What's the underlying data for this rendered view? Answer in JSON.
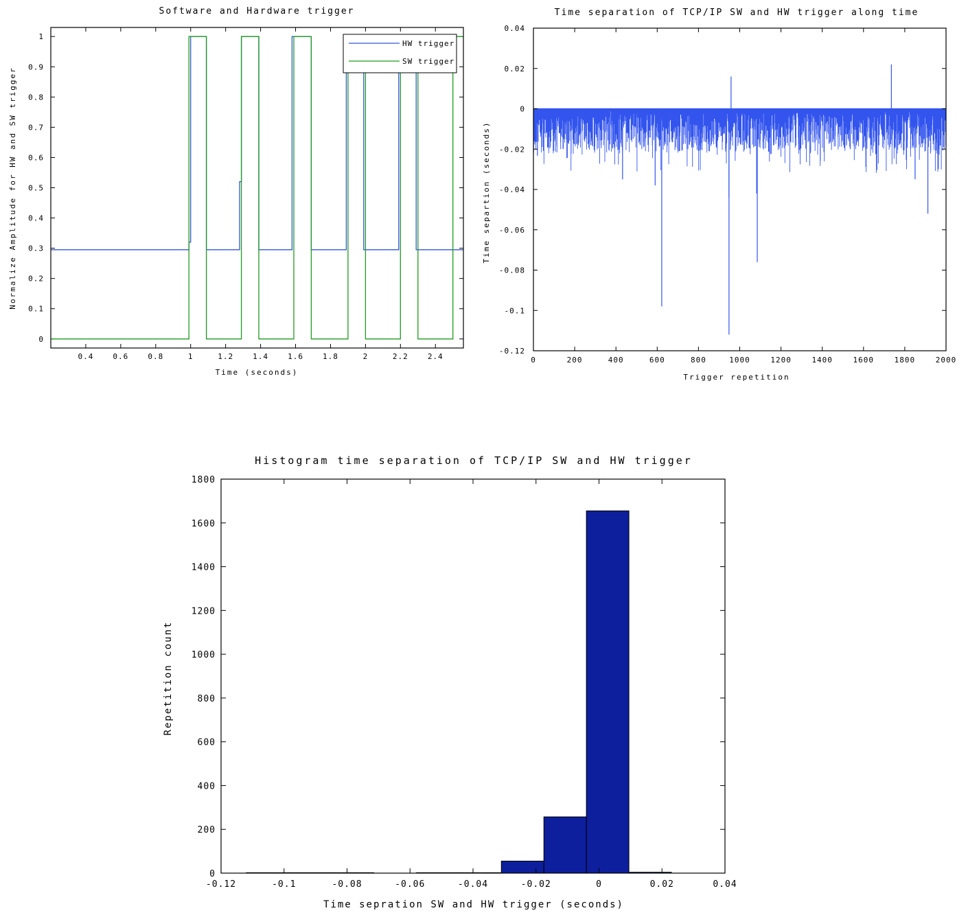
{
  "chart_data": [
    {
      "type": "line",
      "title": "Software and Hardware trigger",
      "xlabel": "Time (seconds)",
      "ylabel": "Normalize Amplitude for HW and SW trigger",
      "xlim": [
        0.2,
        2.56
      ],
      "ylim": [
        -0.03,
        1.03
      ],
      "xticks": [
        0.4,
        0.6,
        0.8,
        1,
        1.2,
        1.4,
        1.6,
        1.8,
        2,
        2.2,
        2.4
      ],
      "yticks": [
        0,
        0.1,
        0.2,
        0.3,
        0.4,
        0.5,
        0.6,
        0.7,
        0.8,
        0.9,
        1
      ],
      "grid": false,
      "legend_position": "top-right",
      "series": [
        {
          "name": "HW trigger",
          "color": "#3355dd",
          "x": [
            0.2,
            0.99,
            0.99,
            1.0,
            1.0,
            1.09,
            1.09,
            1.28,
            1.28,
            1.29,
            1.29,
            1.39,
            1.39,
            1.58,
            1.58,
            1.69,
            1.69,
            1.89,
            1.89,
            1.99,
            1.99,
            2.19,
            2.19,
            2.29,
            2.29,
            2.56
          ],
          "y": [
            0.295,
            0.295,
            0.32,
            0.32,
            1.0,
            1.0,
            0.295,
            0.295,
            0.52,
            0.52,
            1.0,
            1.0,
            0.295,
            0.295,
            1.0,
            1.0,
            0.295,
            0.295,
            1.0,
            1.0,
            0.295,
            0.295,
            1.0,
            1.0,
            0.295,
            0.295
          ]
        },
        {
          "name": "SW trigger",
          "color": "#1f9a1f",
          "x": [
            0.2,
            0.99,
            0.99,
            1.09,
            1.09,
            1.29,
            1.29,
            1.39,
            1.39,
            1.59,
            1.59,
            1.69,
            1.69,
            1.9,
            1.9,
            2.0,
            2.0,
            2.2,
            2.2,
            2.3,
            2.3,
            2.5,
            2.5,
            2.56
          ],
          "y": [
            0,
            0,
            1,
            1,
            0,
            0,
            1,
            1,
            0,
            0,
            1,
            1,
            0,
            0,
            1,
            1,
            0,
            0,
            1,
            1,
            0,
            0,
            1,
            1
          ]
        }
      ]
    },
    {
      "type": "bar",
      "title": "Time separation of TCP/IP SW and HW trigger along time",
      "xlabel": "Trigger repetition",
      "ylabel": "Time separtion (seconds)",
      "xlim": [
        0,
        2000
      ],
      "ylim": [
        -0.12,
        0.04
      ],
      "xticks": [
        0,
        200,
        400,
        600,
        800,
        1000,
        1200,
        1400,
        1600,
        1800,
        2000
      ],
      "yticks": [
        0.04,
        0.02,
        0,
        -0.02,
        -0.04,
        -0.06,
        -0.08,
        -0.1,
        -0.12
      ],
      "ytick_labels": [
        "0.04",
        "0.02",
        "0",
        "-0.02",
        "-0.04",
        "-0.06",
        "-0.08",
        "-0.1",
        "-0.12"
      ],
      "grid": false,
      "color": "#3355ee",
      "n_points": 2000,
      "typical_range": [
        -0.02,
        0
      ],
      "notable_points": [
        {
          "x": 622,
          "y": -0.098
        },
        {
          "x": 948,
          "y": -0.112
        },
        {
          "x": 958,
          "y": 0.016
        },
        {
          "x": 1085,
          "y": -0.076
        },
        {
          "x": 1082,
          "y": -0.042
        },
        {
          "x": 1735,
          "y": 0.022
        },
        {
          "x": 590,
          "y": -0.038
        },
        {
          "x": 1912,
          "y": -0.052
        },
        {
          "x": 432,
          "y": -0.035
        },
        {
          "x": 1850,
          "y": -0.035
        },
        {
          "x": 948,
          "y": -0.044
        }
      ]
    },
    {
      "type": "bar",
      "title": "Histogram time separation of TCP/IP SW and HW trigger",
      "xlabel": "Time sepration SW and HW trigger (seconds)",
      "ylabel": "Repetition count",
      "xlim": [
        -0.12,
        0.04
      ],
      "ylim": [
        0,
        1800
      ],
      "xticks": [
        -0.12,
        -0.1,
        -0.08,
        -0.06,
        -0.04,
        -0.02,
        0,
        0.02,
        0.04
      ],
      "xtick_labels": [
        "-0.12",
        "-0.1",
        "-0.08",
        "-0.06",
        "-0.04",
        "-0.02",
        "0",
        "0.02",
        "0.04"
      ],
      "yticks": [
        0,
        200,
        400,
        600,
        800,
        1000,
        1200,
        1400,
        1600,
        1800
      ],
      "grid": false,
      "color": "#0d1f9c",
      "bin_edges": [
        -0.112,
        -0.0985,
        -0.085,
        -0.0715,
        -0.058,
        -0.0445,
        -0.031,
        -0.0175,
        -0.004,
        0.0095,
        0.023
      ],
      "counts": [
        2,
        2,
        2,
        0,
        2,
        2,
        55,
        257,
        1655,
        4
      ]
    }
  ]
}
